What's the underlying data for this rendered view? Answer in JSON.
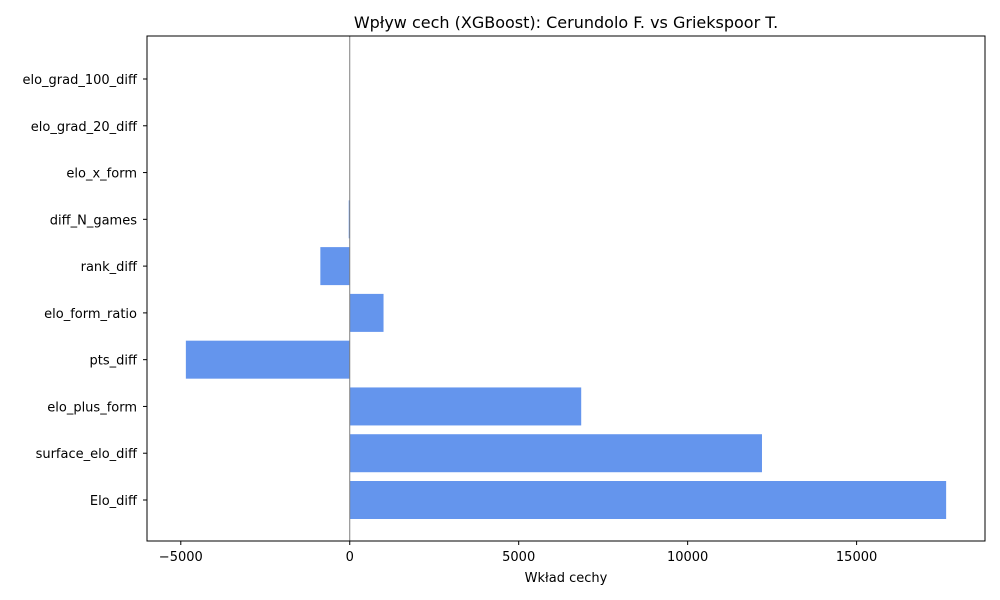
{
  "chart_data": {
    "type": "bar",
    "orientation": "horizontal",
    "title": "Wpływ cech (XGBoost): Cerundolo F. vs Griekspoor T.",
    "xlabel": "Wkład cechy",
    "ylabel": "",
    "categories": [
      "elo_grad_100_diff",
      "elo_grad_20_diff",
      "elo_x_form",
      "diff_N_games",
      "rank_diff",
      "elo_form_ratio",
      "pts_diff",
      "elo_plus_form",
      "surface_elo_diff",
      "Elo_diff"
    ],
    "values": [
      0,
      0,
      0,
      -30,
      -870,
      1000,
      -4850,
      6850,
      12200,
      17650
    ],
    "xlim": [
      -6000,
      18800
    ],
    "xticks": [
      -5000,
      0,
      5000,
      10000,
      15000
    ],
    "xtick_labels": [
      "−5000",
      "0",
      "5000",
      "10000",
      "15000"
    ],
    "bar_color": "#6495ED",
    "zero_line_color": "#808080",
    "grid": false,
    "legend": "none"
  }
}
